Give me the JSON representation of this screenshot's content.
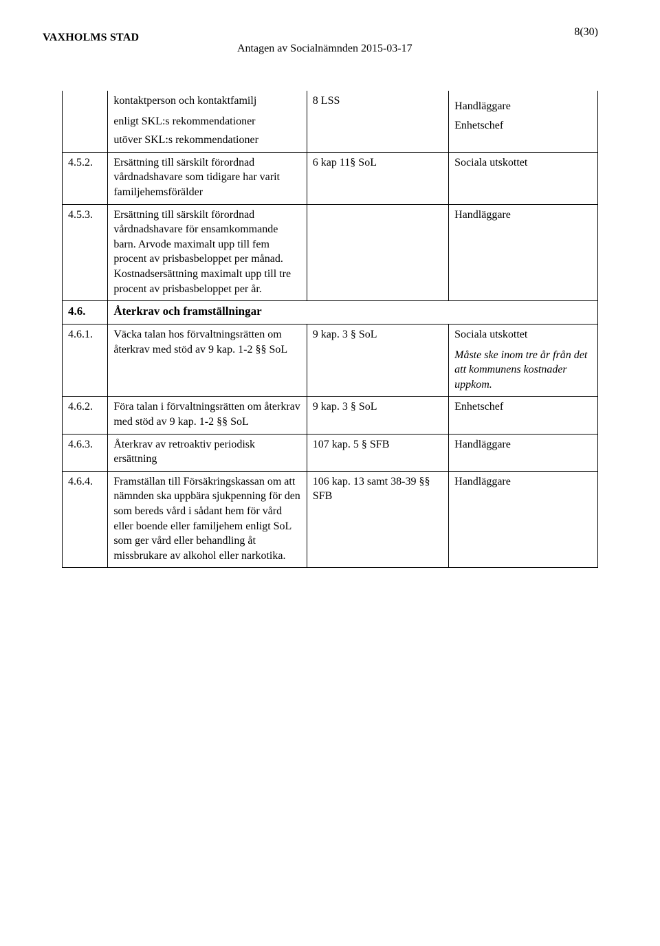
{
  "header": {
    "left": "VAXHOLMS STAD",
    "mid": "Antagen av Socialnämnden 2015-03-17",
    "right": "8(30)"
  },
  "rows": [
    {
      "num": "",
      "col2_parts": [
        {
          "text": "kontaktperson och kontaktfamilj",
          "style": ""
        },
        {
          "text": "enligt SKL:s rekommendationer",
          "style": "sub"
        },
        {
          "text": "utöver SKL:s rekommendationer",
          "style": "sub"
        }
      ],
      "col3_parts": [
        {
          "text": "8 LSS",
          "style": ""
        }
      ],
      "col4_parts": [
        {
          "text": "",
          "style": ""
        },
        {
          "text": "Handläggare",
          "style": "sub"
        },
        {
          "text": "Enhetschef",
          "style": "sub"
        }
      ],
      "cont": true
    },
    {
      "num": "4.5.2.",
      "col2_parts": [
        {
          "text": "Ersättning till särskilt förordnad vårdnadshavare som tidigare har varit familjehemsförälder",
          "style": ""
        }
      ],
      "col3_parts": [
        {
          "text": "6 kap 11§ SoL",
          "style": ""
        }
      ],
      "col4_parts": [
        {
          "text": " Sociala utskottet",
          "style": ""
        }
      ]
    },
    {
      "num": "4.5.3.",
      "col2_parts": [
        {
          "text": "Ersättning till särskilt förordnad vårdnadshavare för ensamkommande barn. Arvode maximalt upp till fem procent av prisbasbeloppet per månad. Kostnadsersättning maximalt upp till tre procent av prisbasbeloppet per år.",
          "style": ""
        }
      ],
      "col3_parts": [],
      "col4_parts": [
        {
          "text": "Handläggare",
          "style": ""
        }
      ]
    },
    {
      "section": true,
      "num": "4.6.",
      "heading": "Återkrav och framställningar"
    },
    {
      "num": "4.6.1.",
      "col2_parts": [
        {
          "text": "Väcka talan hos förvaltningsrätten om återkrav med stöd av 9 kap. 1-2 §§ SoL",
          "style": ""
        }
      ],
      "col3_parts": [
        {
          "text": "9 kap. 3 § SoL",
          "style": ""
        }
      ],
      "col4_parts": [
        {
          "text": "Sociala utskottet",
          "style": ""
        },
        {
          "text": "Måste ske inom tre år från det att kommunens kostnader uppkom.",
          "style": "italic sub"
        }
      ]
    },
    {
      "num": "4.6.2.",
      "col2_parts": [
        {
          "text": "Föra talan i förvaltningsrätten om återkrav med stöd av 9 kap. 1-2 §§ SoL",
          "style": ""
        }
      ],
      "col3_parts": [
        {
          "text": "9 kap. 3 § SoL",
          "style": ""
        }
      ],
      "col4_parts": [
        {
          "text": "Enhetschef",
          "style": ""
        }
      ]
    },
    {
      "num": "4.6.3.",
      "col2_parts": [
        {
          "text": "Återkrav av retroaktiv periodisk ersättning",
          "style": ""
        }
      ],
      "col3_parts": [
        {
          "text": "107 kap. 5 § SFB",
          "style": ""
        }
      ],
      "col4_parts": [
        {
          "text": "Handläggare",
          "style": ""
        }
      ]
    },
    {
      "num": "4.6.4.",
      "col2_parts": [
        {
          "text": "Framställan till Försäkringskassan om att nämnden ska uppbära sjukpenning för den som bereds vård i sådant hem för vård eller boende eller familjehem enligt SoL som ger vård eller behandling åt missbrukare av alkohol eller narkotika.",
          "style": ""
        }
      ],
      "col3_parts": [
        {
          "text": "106 kap. 13 samt 38-39 §§ SFB",
          "style": ""
        }
      ],
      "col4_parts": [
        {
          "text": "Handläggare",
          "style": ""
        }
      ]
    }
  ]
}
